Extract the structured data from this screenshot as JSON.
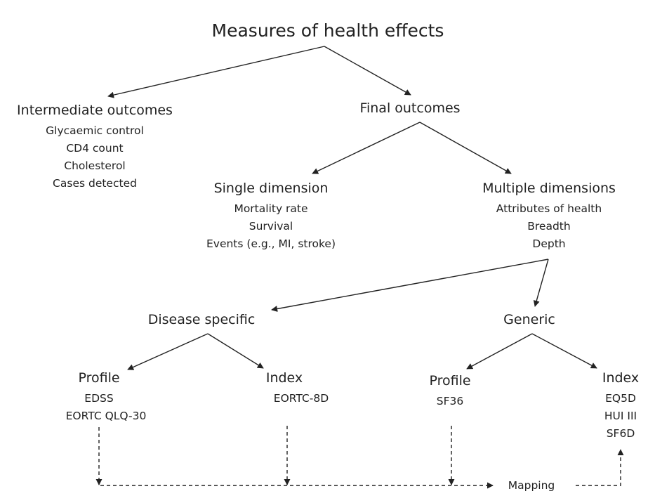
{
  "title": "Measures of health effects",
  "intermediate": {
    "heading": "Intermediate outcomes",
    "items": [
      "Glycaemic control",
      "CD4 count",
      "Cholesterol",
      "Cases detected"
    ]
  },
  "final": {
    "heading": "Final outcomes"
  },
  "single": {
    "heading": "Single dimension",
    "items": [
      "Mortality rate",
      "Survival",
      "Events  (e.g., MI, stroke)"
    ]
  },
  "multiple": {
    "heading": "Multiple dimensions",
    "items": [
      "Attributes of health",
      "Breadth",
      "Depth"
    ]
  },
  "disease": {
    "heading": "Disease specific"
  },
  "generic": {
    "heading": "Generic"
  },
  "ds_profile": {
    "heading": "Profile",
    "items": [
      "EDSS",
      "EORTC QLQ-30"
    ]
  },
  "ds_index": {
    "heading": "Index",
    "items": [
      "EORTC-8D"
    ]
  },
  "gen_profile": {
    "heading": "Profile",
    "items": [
      "SF36"
    ]
  },
  "gen_index": {
    "heading": "Index",
    "items": [
      "EQ5D",
      "HUI III",
      "SF6D"
    ]
  },
  "mapping": {
    "label": "Mapping"
  }
}
